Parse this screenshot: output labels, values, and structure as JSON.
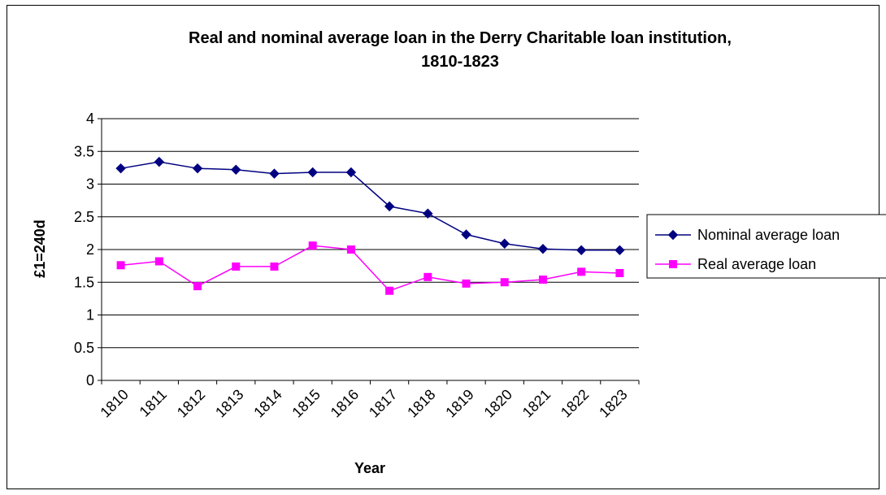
{
  "chart_data": {
    "type": "line",
    "title_line1": "Real and nominal average loan in the Derry Charitable loan institution,",
    "title_line2": "1810-1823",
    "xlabel": "Year",
    "ylabel": "£1=240d",
    "categories": [
      "1810",
      "1811",
      "1812",
      "1813",
      "1814",
      "1815",
      "1816",
      "1817",
      "1818",
      "1819",
      "1820",
      "1821",
      "1822",
      "1823"
    ],
    "ylim": [
      0,
      4
    ],
    "yticks": [
      "0",
      "0.5",
      "1",
      "1.5",
      "2",
      "2.5",
      "3",
      "3.5",
      "4"
    ],
    "grid": true,
    "legend_position": "right",
    "series": [
      {
        "name": "Nominal average loan",
        "color": "#000080",
        "marker": "diamond",
        "values": [
          3.24,
          3.34,
          3.24,
          3.22,
          3.16,
          3.18,
          3.18,
          2.66,
          2.55,
          2.23,
          2.09,
          2.01,
          1.99,
          1.99
        ]
      },
      {
        "name": "Real average loan",
        "color": "#FF00FF",
        "marker": "square",
        "values": [
          1.76,
          1.82,
          1.44,
          1.74,
          1.74,
          2.06,
          2.0,
          1.37,
          1.58,
          1.48,
          1.5,
          1.54,
          1.66,
          1.64
        ]
      }
    ]
  }
}
